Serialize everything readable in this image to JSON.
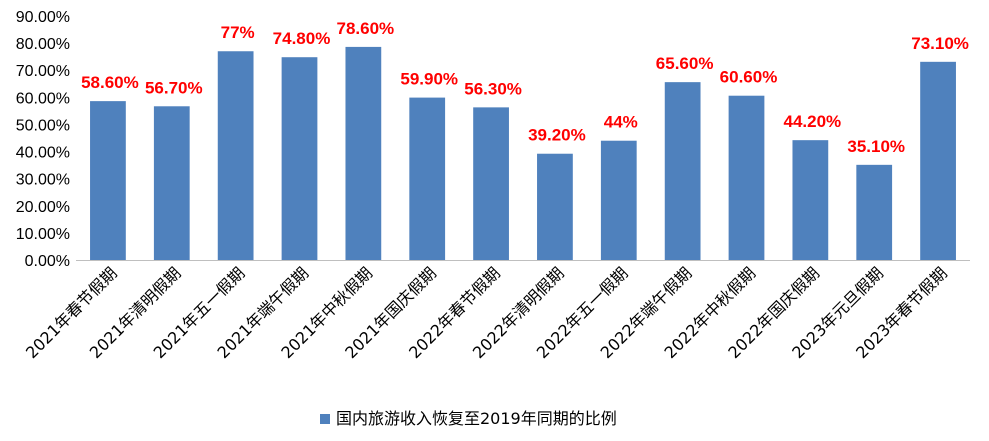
{
  "chart_data": {
    "type": "bar",
    "categories": [
      "2021年春节假期",
      "2021年清明假期",
      "2021年五一假期",
      "2021年端午假期",
      "2021年中秋假期",
      "2021年国庆假期",
      "2022年春节假期",
      "2022年清明假期",
      "2022年五一假期",
      "2022年端午假期",
      "2022年中秋假期",
      "2022年国庆假期",
      "2023年元旦假期",
      "2023年春节假期"
    ],
    "series": [
      {
        "name": "国内旅游收入恢复至2019年同期的比例",
        "values": [
          58.6,
          56.7,
          77,
          74.8,
          78.6,
          59.9,
          56.3,
          39.2,
          44,
          65.6,
          60.6,
          44.2,
          35.1,
          73.1
        ],
        "data_labels": [
          "58.60%",
          "56.70%",
          "77%",
          "74.80%",
          "78.60%",
          "59.90%",
          "56.30%",
          "39.20%",
          "44%",
          "65.60%",
          "60.60%",
          "44.20%",
          "35.10%",
          "73.10%"
        ],
        "color": "#4f81bd",
        "label_color": "#ff0000"
      }
    ],
    "ylim": [
      0,
      90
    ],
    "yticks": [
      0,
      10,
      20,
      30,
      40,
      50,
      60,
      70,
      80,
      90
    ],
    "ytick_labels": [
      "0.00%",
      "10.00%",
      "20.00%",
      "30.00%",
      "40.00%",
      "50.00%",
      "60.00%",
      "70.00%",
      "80.00%",
      "90.00%"
    ],
    "grid": false,
    "legend_position": "bottom"
  }
}
